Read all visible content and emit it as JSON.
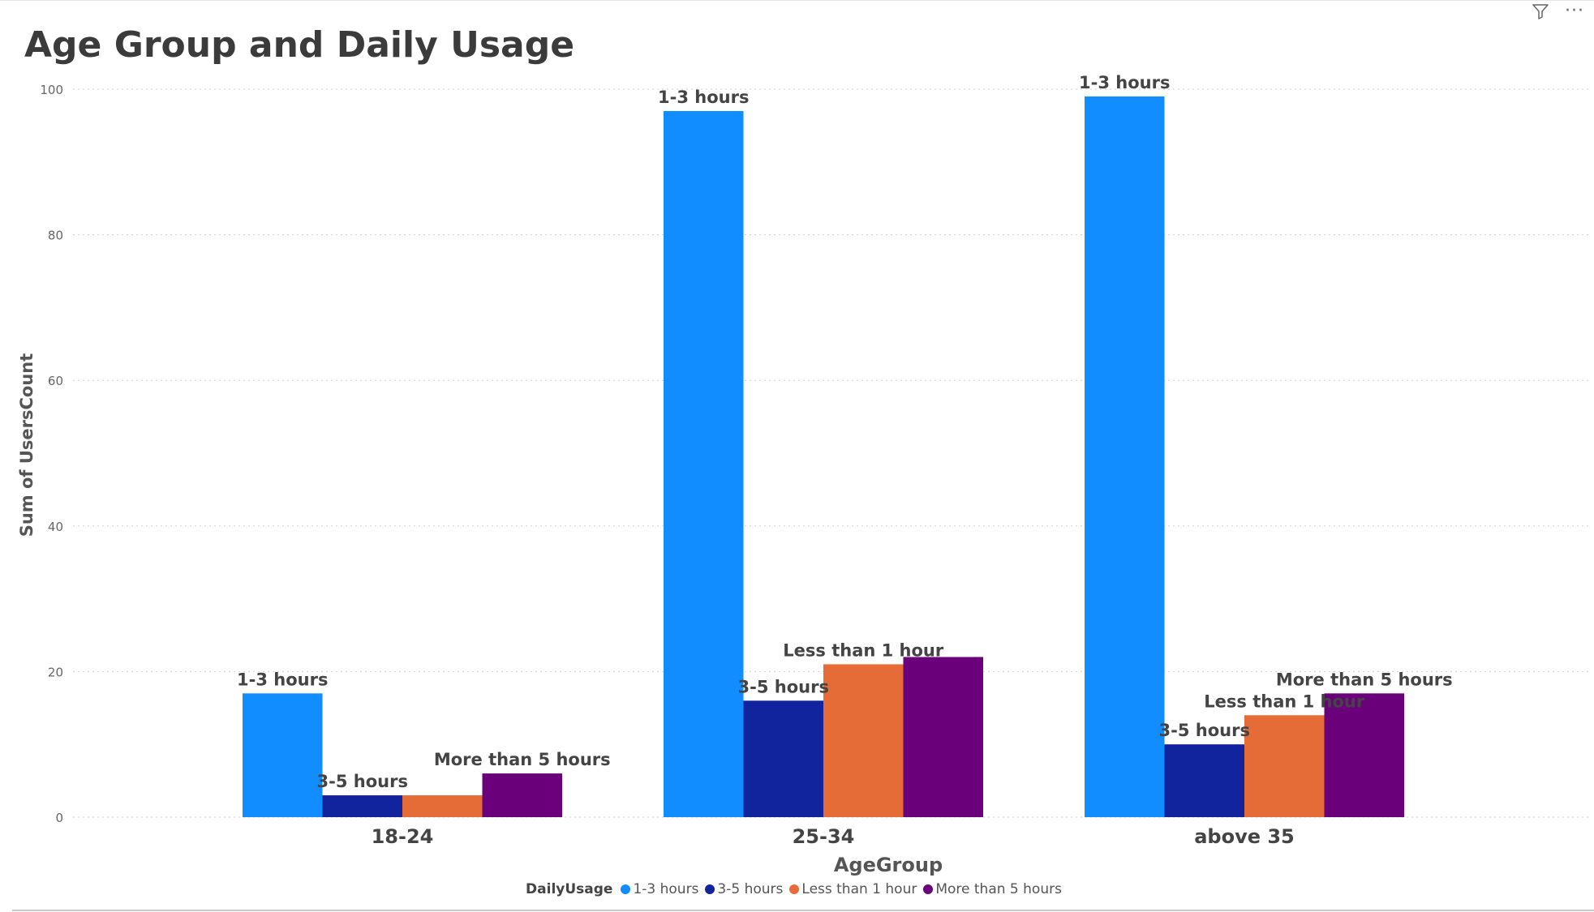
{
  "header": {
    "filter_icon": "filter-icon",
    "more_icon": "more-options-icon"
  },
  "chart_data": {
    "type": "bar",
    "title": "Age Group and Daily Usage",
    "xlabel": "AgeGroup",
    "ylabel": "Sum of UsersCount",
    "ylim": [
      0,
      100
    ],
    "yticks": [
      0,
      20,
      40,
      60,
      80,
      100
    ],
    "categories": [
      "18-24",
      "25-34",
      "above 35"
    ],
    "legend_title": "DailyUsage",
    "legend_position": "bottom-center",
    "grid": true,
    "series": [
      {
        "name": "1-3 hours",
        "color": "#118dff",
        "values": [
          17,
          97,
          99
        ],
        "labels": [
          "1-3 hours",
          "1-3 hours",
          "1-3 hours"
        ]
      },
      {
        "name": "3-5 hours",
        "color": "#12239e",
        "values": [
          3,
          16,
          10
        ],
        "labels": [
          "3-5 hours",
          "3-5 hours",
          "3-5 hours"
        ]
      },
      {
        "name": "Less than 1 hour",
        "color": "#e66c37",
        "values": [
          3,
          21,
          14
        ],
        "labels": [
          "",
          "Less than 1 hour",
          "Less than 1 hour"
        ]
      },
      {
        "name": "More than 5 hours",
        "color": "#6b007b",
        "values": [
          6,
          22,
          17
        ],
        "labels": [
          "More than 5 hours",
          "",
          "More than 5 hours"
        ]
      }
    ]
  }
}
